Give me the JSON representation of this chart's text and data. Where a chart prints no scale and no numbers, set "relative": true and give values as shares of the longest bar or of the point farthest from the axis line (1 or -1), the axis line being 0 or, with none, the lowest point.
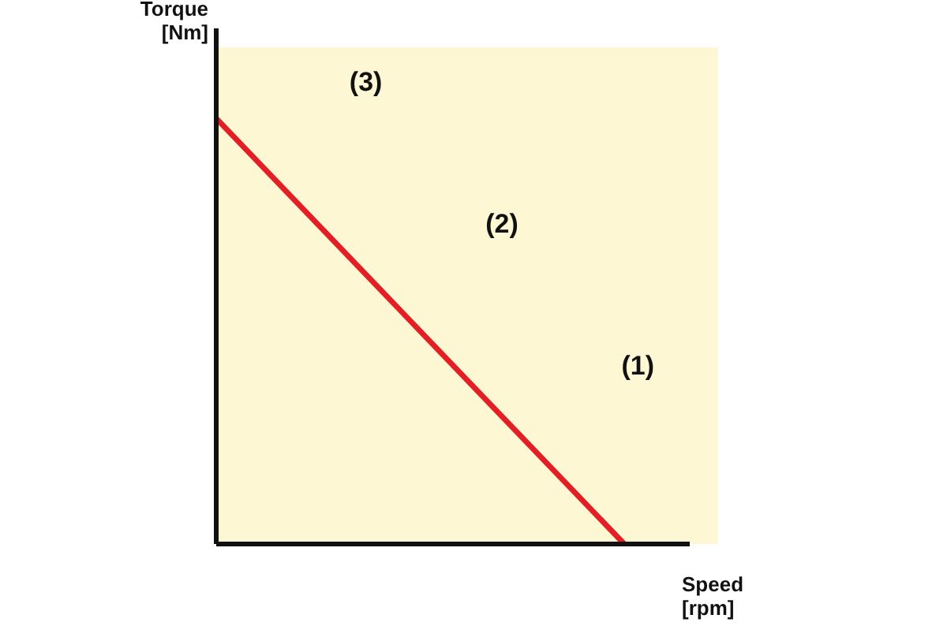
{
  "chart_data": {
    "type": "line",
    "relative": true,
    "xlabel": "Speed [rpm]",
    "ylabel": "Torque [Nm]",
    "categories": [
      null,
      null
    ],
    "series": [
      {
        "color": "#e31e24",
        "values": [
          1,
          0
        ]
      }
    ],
    "annotations": [
      "(3)",
      "(2)",
      "(1)"
    ]
  }
}
